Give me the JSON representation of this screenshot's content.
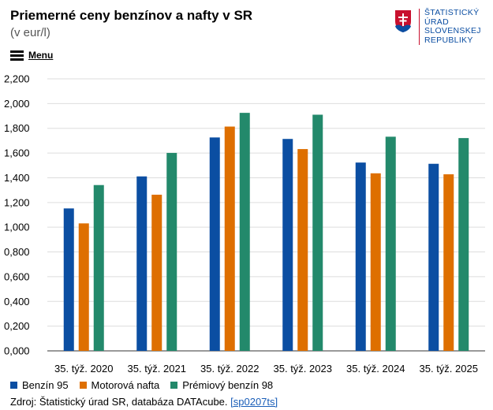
{
  "header": {
    "title": "Priemerné ceny benzínov a nafty v SR",
    "subtitle": "(v eur/l)",
    "menu_label": "Menu"
  },
  "logo": {
    "lines": [
      "ŠTATISTICKÝ",
      "ÚRAD",
      "SLOVENSKEJ",
      "REPUBLIKY"
    ],
    "icon": "slovak-coat-of-arms-icon"
  },
  "source": {
    "text": "Zdroj: Štatistický úrad SR, databáza DATAcube. ",
    "link": "[sp0207ts]"
  },
  "colors": {
    "benzin95": "#0b4ea2",
    "nafta": "#de6f00",
    "premium98": "#23896b",
    "grid": "#dddddd"
  },
  "chart_data": {
    "type": "bar",
    "title": "Priemerné ceny benzínov a nafty v SR",
    "subtitle": "(v eur/l)",
    "categories": [
      "35. týž. 2020",
      "35. týž. 2021",
      "35. týž. 2022",
      "35. týž. 2023",
      "35. týž. 2024",
      "35. týž. 2025"
    ],
    "series": [
      {
        "name": "Benzín 95",
        "color": "#0b4ea2",
        "values": [
          1.152,
          1.411,
          1.726,
          1.714,
          1.523,
          1.513
        ]
      },
      {
        "name": "Motorová nafta",
        "color": "#de6f00",
        "values": [
          1.031,
          1.263,
          1.814,
          1.632,
          1.436,
          1.428
        ]
      },
      {
        "name": "Prémiový benzín 98",
        "color": "#23896b",
        "values": [
          1.341,
          1.601,
          1.925,
          1.91,
          1.732,
          1.721
        ]
      }
    ],
    "ylim": [
      0,
      2.2
    ],
    "yticks": [
      "0,000",
      "0,200",
      "0,400",
      "0,600",
      "0,800",
      "1,000",
      "1,200",
      "1,400",
      "1,600",
      "1,800",
      "2,000",
      "2,200"
    ],
    "grid": true,
    "legend_position": "bottom-left"
  }
}
